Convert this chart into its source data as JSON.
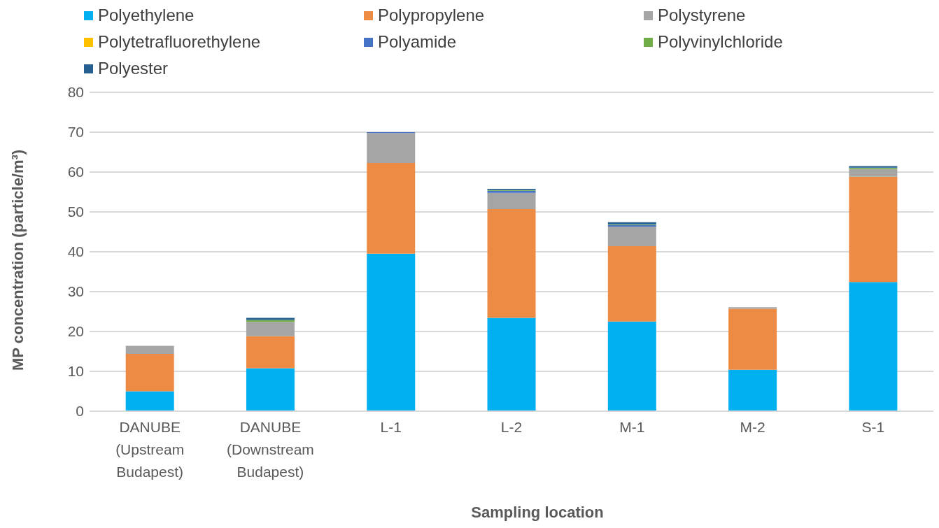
{
  "chart_data": {
    "type": "bar",
    "stacked": true,
    "xlabel": "Sampling location",
    "ylabel": "MP concentration (particle/m³)",
    "categories": [
      "DANUBE (Upstream Budapest)",
      "DANUBE (Downstream Budapest)",
      "L-1",
      "L-2",
      "M-1",
      "M-2",
      "S-1"
    ],
    "series": [
      {
        "name": "Polyethylene",
        "color": "#00b0f0",
        "values": [
          5.0,
          10.8,
          39.5,
          23.4,
          22.5,
          10.4,
          32.4
        ]
      },
      {
        "name": "Polypropylene",
        "color": "#ed8b45",
        "values": [
          9.4,
          8.0,
          22.8,
          27.3,
          18.9,
          15.3,
          26.4
        ]
      },
      {
        "name": "Polystyrene",
        "color": "#a5a5a5",
        "values": [
          2.0,
          3.6,
          7.5,
          4.1,
          4.9,
          0.4,
          2.0
        ]
      },
      {
        "name": "Polytetrafluorethylene",
        "color": "#ffc000",
        "values": [
          0,
          0,
          0,
          0,
          0,
          0,
          0
        ]
      },
      {
        "name": "Polyamide",
        "color": "#4472c4",
        "values": [
          0,
          0,
          0.2,
          0.5,
          0.4,
          0,
          0
        ]
      },
      {
        "name": "Polyvinylchloride",
        "color": "#70ad47",
        "values": [
          0,
          0.5,
          0,
          0.2,
          0.2,
          0,
          0.3
        ]
      },
      {
        "name": "Polyester",
        "color": "#255e91",
        "values": [
          0,
          0.5,
          0,
          0.3,
          0.5,
          0,
          0.4
        ]
      }
    ],
    "ylim": [
      0,
      80
    ],
    "yticks": [
      0,
      10,
      20,
      30,
      40,
      50,
      60,
      70,
      80
    ],
    "grid": "y",
    "legend": "top"
  }
}
